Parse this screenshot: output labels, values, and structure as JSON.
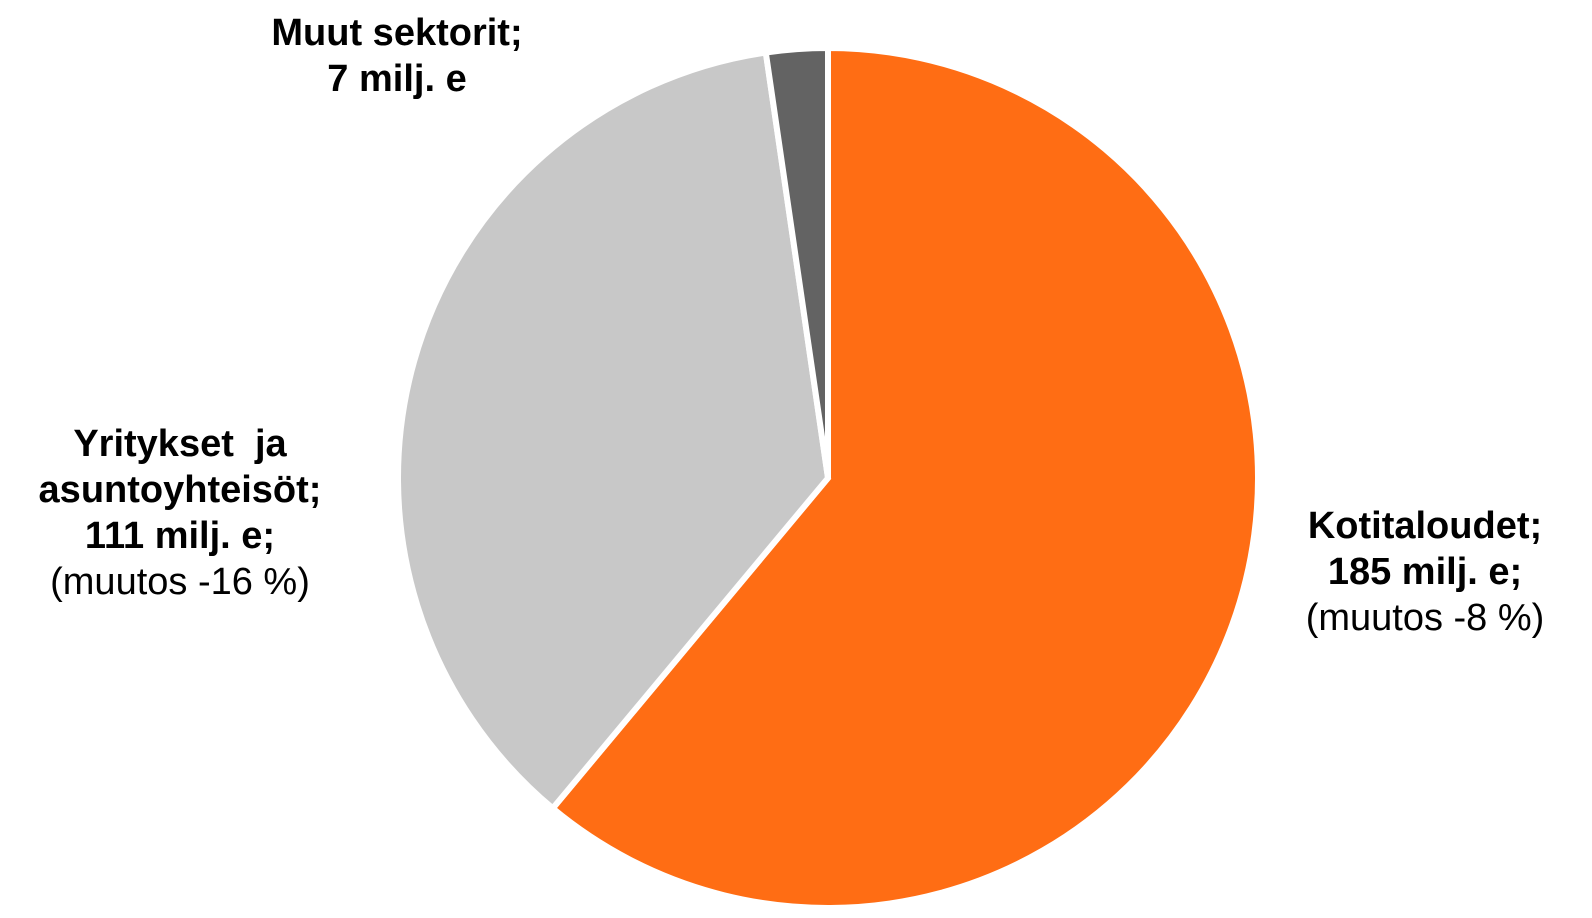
{
  "chart_data": {
    "type": "pie",
    "title": "",
    "unit": "milj. e",
    "start_angle_deg": 0,
    "direction": "clockwise",
    "slices": [
      {
        "category": "Kotitaloudet",
        "value": 185,
        "color": "#FF6D14",
        "label_lines": [
          "Kotitaloudet;",
          "185 milj. e;",
          "(muutos -8 %)"
        ],
        "label_bold": [
          true,
          true,
          false
        ],
        "label_position": "right"
      },
      {
        "category": "Yritykset ja asuntoyhteisöt",
        "value": 111,
        "color": "#C8C8C8",
        "label_lines": [
          "Yritykset  ja",
          "asuntoyhteisöt;",
          "111 milj. e;",
          "(muutos -16 %)"
        ],
        "label_bold": [
          true,
          true,
          true,
          false
        ],
        "label_position": "left"
      },
      {
        "category": "Muut sektorit",
        "value": 7,
        "color": "#636363",
        "label_lines": [
          "Muut sektorit;",
          "7 milj. e"
        ],
        "label_bold": [
          true,
          true
        ],
        "label_position": "top"
      }
    ]
  }
}
